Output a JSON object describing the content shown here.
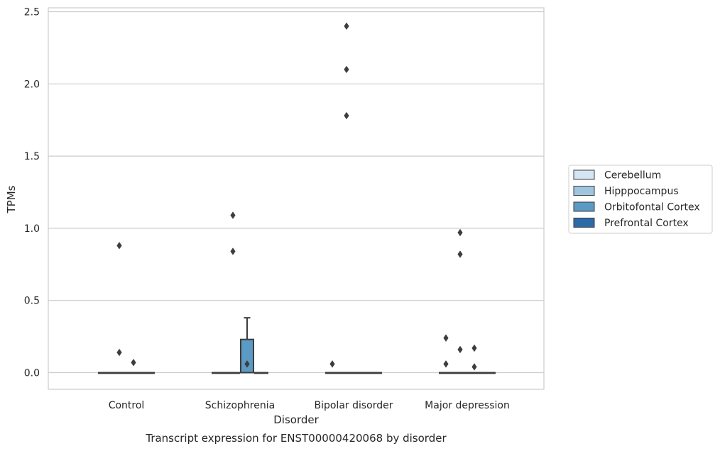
{
  "chart_data": {
    "type": "box",
    "title": "",
    "caption": "Transcript expression for ENST00000420068 by disorder",
    "xlabel": "Disorder",
    "ylabel": "TPMs",
    "ylim": [
      -0.11,
      2.53
    ],
    "yticks": [
      0.0,
      0.5,
      1.0,
      1.5,
      2.0,
      2.5
    ],
    "ytick_labels": [
      "0.0",
      "0.5",
      "1.0",
      "1.5",
      "2.0",
      "2.5"
    ],
    "grid": "horizontal",
    "legend_position": "right",
    "categories": [
      "Control",
      "Schizophrenia",
      "Bipolar disorder",
      "Major depression"
    ],
    "series": [
      {
        "name": "Cerebellum",
        "color": "#d5e5f2",
        "boxes": [
          {
            "q1": 0,
            "median": 0,
            "q3": 0,
            "whisker_low": 0,
            "whisker_high": 0,
            "outliers": []
          },
          {
            "q1": 0,
            "median": 0,
            "q3": 0,
            "whisker_low": 0,
            "whisker_high": 0,
            "outliers": []
          },
          {
            "q1": 0,
            "median": 0,
            "q3": 0,
            "whisker_low": 0,
            "whisker_high": 0,
            "outliers": [
              0.06
            ]
          },
          {
            "q1": 0,
            "median": 0,
            "q3": 0,
            "whisker_low": 0,
            "whisker_high": 0,
            "outliers": [
              0.24,
              0.06
            ]
          }
        ]
      },
      {
        "name": "Hipppocampus",
        "color": "#9fc5de",
        "boxes": [
          {
            "q1": 0,
            "median": 0,
            "q3": 0,
            "whisker_low": 0,
            "whisker_high": 0,
            "outliers": [
              0.88,
              0.14
            ]
          },
          {
            "q1": 0,
            "median": 0,
            "q3": 0,
            "whisker_low": 0,
            "whisker_high": 0,
            "outliers": [
              1.09,
              0.84
            ]
          },
          {
            "q1": 0,
            "median": 0,
            "q3": 0,
            "whisker_low": 0,
            "whisker_high": 0,
            "outliers": [
              2.4,
              2.1,
              1.78
            ]
          },
          {
            "q1": 0,
            "median": 0,
            "q3": 0,
            "whisker_low": 0,
            "whisker_high": 0,
            "outliers": [
              0.97,
              0.82,
              0.16
            ]
          }
        ]
      },
      {
        "name": "Orbitofontal Cortex",
        "color": "#5b9ac4",
        "boxes": [
          {
            "q1": 0,
            "median": 0,
            "q3": 0,
            "whisker_low": 0,
            "whisker_high": 0,
            "outliers": [
              0.07
            ]
          },
          {
            "q1": 0,
            "median": 0,
            "q3": 0.23,
            "whisker_low": 0,
            "whisker_high": 0.38,
            "outliers": [
              0.06
            ]
          },
          {
            "q1": 0,
            "median": 0,
            "q3": 0,
            "whisker_low": 0,
            "whisker_high": 0,
            "outliers": []
          },
          {
            "q1": 0,
            "median": 0,
            "q3": 0,
            "whisker_low": 0,
            "whisker_high": 0,
            "outliers": [
              0.17,
              0.04
            ]
          }
        ]
      },
      {
        "name": "Prefrontal Cortex",
        "color": "#2c6aa8",
        "boxes": [
          {
            "q1": 0,
            "median": 0,
            "q3": 0,
            "whisker_low": 0,
            "whisker_high": 0,
            "outliers": []
          },
          {
            "q1": 0,
            "median": 0,
            "q3": 0,
            "whisker_low": 0,
            "whisker_high": 0,
            "outliers": []
          },
          {
            "q1": 0,
            "median": 0,
            "q3": 0,
            "whisker_low": 0,
            "whisker_high": 0,
            "outliers": []
          },
          {
            "q1": 0,
            "median": 0,
            "q3": 0,
            "whisker_low": 0,
            "whisker_high": 0,
            "outliers": []
          }
        ]
      }
    ]
  }
}
